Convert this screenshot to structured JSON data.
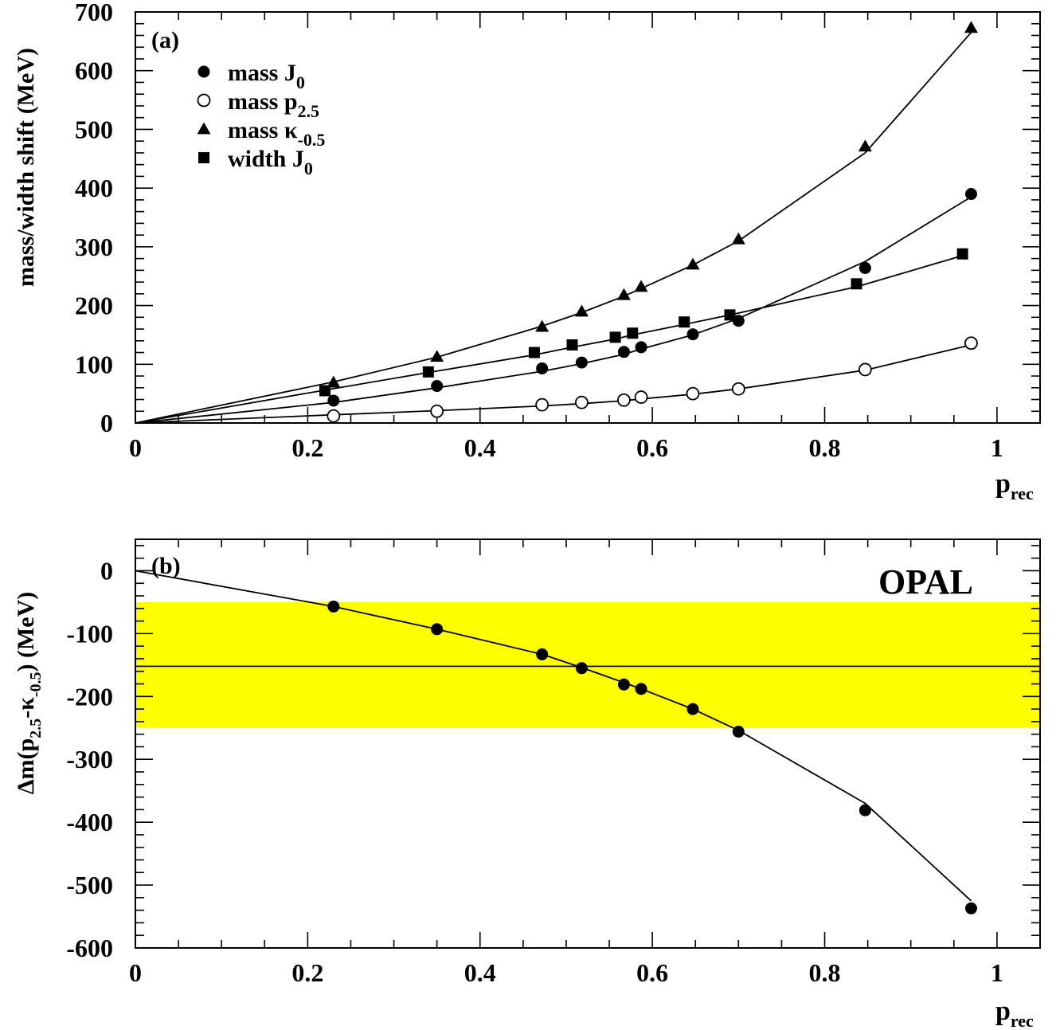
{
  "chart_data": [
    {
      "type": "scatter",
      "panel_label": "(a)",
      "ylabel": "mass/width shift (MeV)",
      "xlabel": {
        "base": "p",
        "sub": "rec"
      },
      "xlim": [
        0,
        1.05
      ],
      "ylim": [
        0,
        700
      ],
      "xticks": [
        0,
        0.2,
        0.4,
        0.6,
        0.8,
        1
      ],
      "xtick_labels": [
        "0",
        "0.2",
        "0.4",
        "0.6",
        "0.8",
        "1"
      ],
      "yticks": [
        0,
        100,
        200,
        300,
        400,
        500,
        600,
        700
      ],
      "ytick_labels": [
        "0",
        "100",
        "200",
        "300",
        "400",
        "500",
        "600",
        "700"
      ],
      "legend_position": "top-left",
      "series": [
        {
          "name": {
            "base": "mass J",
            "sub": "0"
          },
          "marker": "circle-filled",
          "x": [
            0.23,
            0.35,
            0.472,
            0.518,
            0.567,
            0.587,
            0.647,
            0.7,
            0.847,
            0.97
          ],
          "y": [
            38,
            63,
            93,
            103,
            121,
            129,
            151,
            174,
            264,
            390
          ],
          "fit": {
            "x": [
              0,
              0.23,
              0.35,
              0.472,
              0.518,
              0.567,
              0.587,
              0.647,
              0.7,
              0.847,
              0.97
            ],
            "y": [
              0,
              35,
              60,
              88,
              101,
              117,
              126,
              150,
              178,
              275,
              385
            ]
          }
        },
        {
          "name": {
            "base": "mass p",
            "sub": "2.5"
          },
          "marker": "circle-open",
          "x": [
            0.23,
            0.35,
            0.472,
            0.518,
            0.567,
            0.587,
            0.647,
            0.7,
            0.847,
            0.97
          ],
          "y": [
            12,
            20,
            31,
            35,
            39,
            44,
            50,
            58,
            91,
            136
          ],
          "fit": {
            "x": [
              0,
              0.23,
              0.35,
              0.472,
              0.518,
              0.567,
              0.587,
              0.647,
              0.7,
              0.847,
              0.97
            ],
            "y": [
              0,
              14,
              21,
              29,
              33,
              38,
              41,
              49,
              58,
              90,
              133
            ]
          }
        },
        {
          "name": {
            "base": "mass κ",
            "sub": "-0.5"
          },
          "marker": "triangle-filled",
          "x": [
            0.23,
            0.35,
            0.472,
            0.518,
            0.567,
            0.587,
            0.647,
            0.7,
            0.847,
            0.97
          ],
          "y": [
            69,
            113,
            164,
            190,
            218,
            232,
            270,
            313,
            471,
            673
          ],
          "fit": {
            "x": [
              0,
              0.23,
              0.35,
              0.472,
              0.518,
              0.567,
              0.587,
              0.647,
              0.7,
              0.847,
              0.97
            ],
            "y": [
              0,
              70,
              112,
              165,
              188,
              216,
              229,
              269,
              310,
              460,
              665
            ]
          }
        },
        {
          "name": {
            "base": "width J",
            "sub": "0"
          },
          "marker": "square-filled",
          "x": [
            0.22,
            0.34,
            0.463,
            0.507,
            0.557,
            0.577,
            0.637,
            0.69,
            0.837,
            0.96
          ],
          "y": [
            55,
            87,
            120,
            133,
            146,
            153,
            172,
            184,
            237,
            288
          ],
          "fit": {
            "x": [
              0,
              0.22,
              0.34,
              0.463,
              0.507,
              0.557,
              0.577,
              0.637,
              0.69,
              0.837,
              0.96
            ],
            "y": [
              0,
              56,
              86,
              116,
              129,
              143,
              150,
              168,
              184,
              232,
              285
            ]
          }
        }
      ]
    },
    {
      "type": "scatter",
      "panel_label": "(b)",
      "annotation": "OPAL",
      "ylabel": {
        "pre": "Δm(p",
        "sub1": "2.5",
        "mid": "-κ",
        "sub2": "-0.5",
        "post": ") (MeV)"
      },
      "xlabel": {
        "base": "p",
        "sub": "rec"
      },
      "xlim": [
        0,
        1.05
      ],
      "ylim": [
        -600,
        50
      ],
      "xticks": [
        0,
        0.2,
        0.4,
        0.6,
        0.8,
        1
      ],
      "xtick_labels": [
        "0",
        "0.2",
        "0.4",
        "0.6",
        "0.8",
        "1"
      ],
      "yticks": [
        0,
        -100,
        -200,
        -300,
        -400,
        -500,
        -600
      ],
      "ytick_labels": [
        "0",
        "-100",
        "-200",
        "-300",
        "-400",
        "-500",
        "-600"
      ],
      "band": {
        "ymin": -250,
        "ymax": -50,
        "color": "#ffff00"
      },
      "hline": -152,
      "series": [
        {
          "marker": "circle-filled",
          "x": [
            0.23,
            0.35,
            0.472,
            0.518,
            0.567,
            0.587,
            0.647,
            0.7,
            0.847,
            0.97
          ],
          "y": [
            -57,
            -93,
            -133,
            -155,
            -181,
            -188,
            -220,
            -256,
            -381,
            -537
          ],
          "fit": {
            "x": [
              0,
              0.23,
              0.35,
              0.472,
              0.518,
              0.567,
              0.587,
              0.647,
              0.7,
              0.847,
              0.97
            ],
            "y": [
              0,
              -57,
              -93,
              -133,
              -154,
              -178,
              -188,
              -220,
              -254,
              -370,
              -525
            ]
          }
        }
      ]
    }
  ]
}
